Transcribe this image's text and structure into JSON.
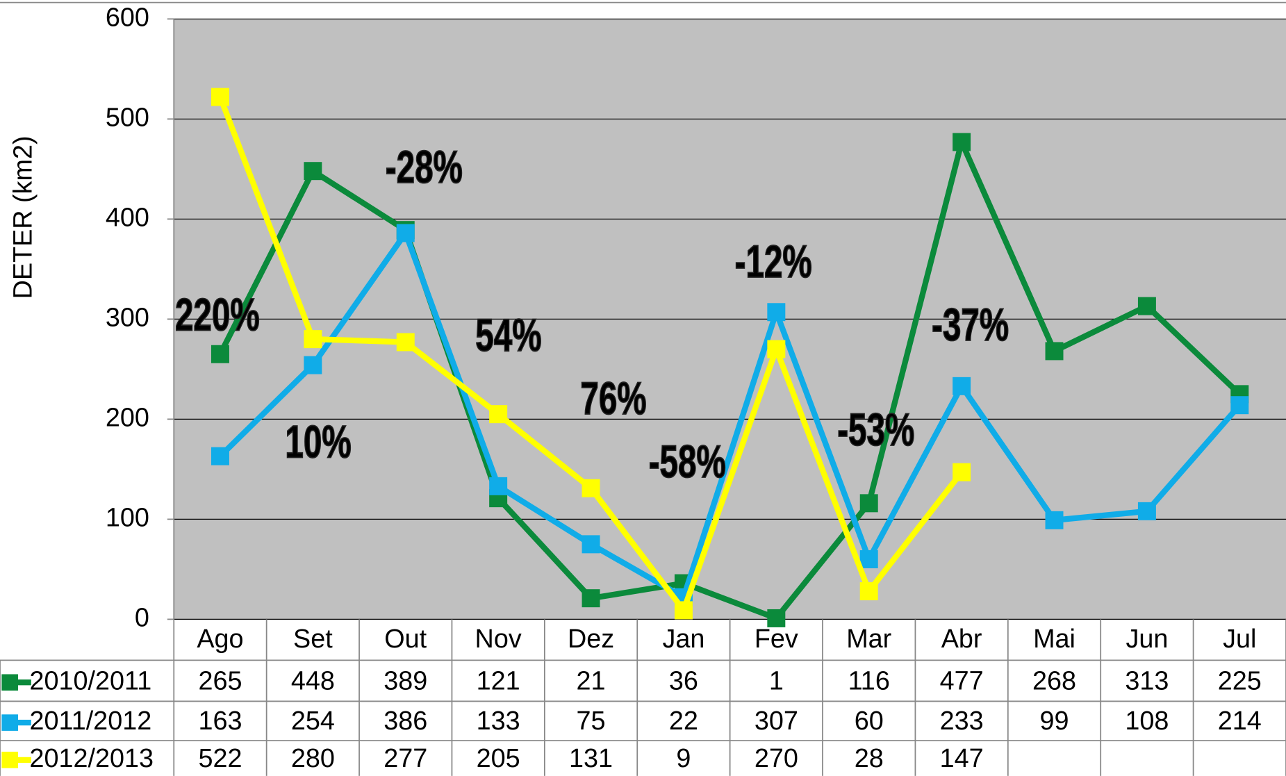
{
  "chart_data": {
    "type": "line",
    "y_axis_label": "DETER (km2)",
    "categories": [
      "Ago",
      "Set",
      "Out",
      "Nov",
      "Dez",
      "Jan",
      "Fev",
      "Mar",
      "Abr",
      "Mai",
      "Jun",
      "Jul"
    ],
    "series": [
      {
        "name": "2010/2011",
        "color": "#0b8a3b",
        "values": [
          265,
          448,
          389,
          121,
          21,
          36,
          1,
          116,
          477,
          268,
          313,
          225
        ]
      },
      {
        "name": "2011/2012",
        "color": "#10ace8",
        "values": [
          163,
          254,
          386,
          133,
          75,
          22,
          307,
          60,
          233,
          99,
          108,
          214
        ]
      },
      {
        "name": "2012/2013",
        "color": "#ffff00",
        "values": [
          522,
          280,
          277,
          205,
          131,
          9,
          270,
          28,
          147,
          null,
          null,
          null
        ]
      }
    ],
    "ylim": [
      0,
      600
    ],
    "yticks": [
      0,
      100,
      200,
      300,
      400,
      500,
      600
    ],
    "grid": true,
    "plot_background": "#c0c0c0",
    "annotations": [
      {
        "text": "220%",
        "color": "#ff0000"
      },
      {
        "text": "10%",
        "color": "#ff0000"
      },
      {
        "text": "-28%",
        "color": "#1aa03c"
      },
      {
        "text": "54%",
        "color": "#ff0000"
      },
      {
        "text": "76%",
        "color": "#ff0000"
      },
      {
        "text": "-58%",
        "color": "#1aa03c"
      },
      {
        "text": "-12%",
        "color": "#1aa03c"
      },
      {
        "text": "-53%",
        "color": "#1aa03c"
      },
      {
        "text": "-37%",
        "color": "#1aa03c"
      }
    ]
  }
}
